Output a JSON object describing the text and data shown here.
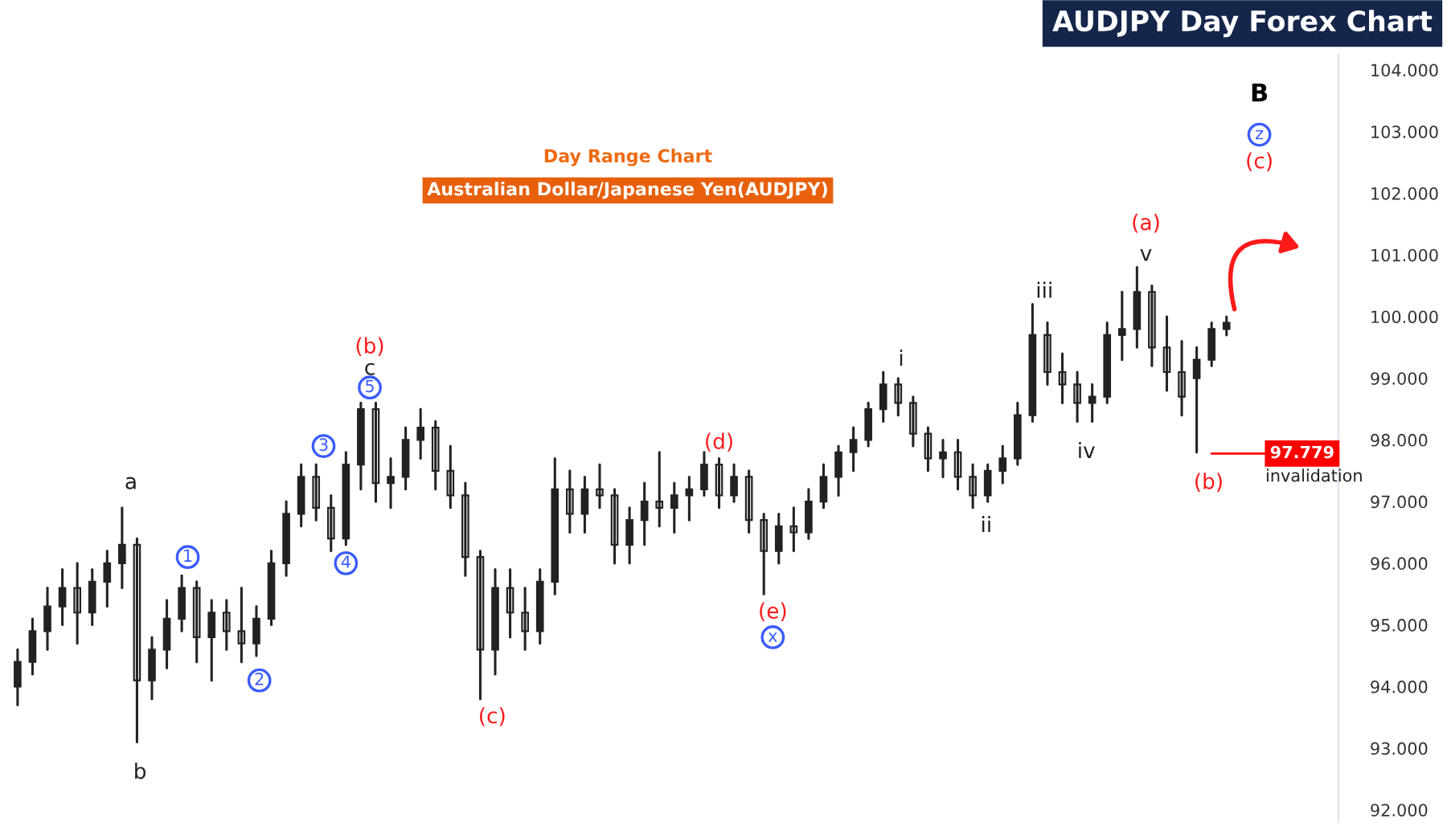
{
  "chart_data": {
    "type": "candlestick",
    "title": "AUDJPY Day Forex Chart",
    "categories": [
      null,
      null,
      null,
      null,
      null,
      null,
      null,
      null,
      null,
      null,
      null,
      null,
      null,
      null,
      null,
      null,
      null,
      null,
      null,
      null,
      null,
      null,
      null,
      null,
      null,
      null,
      null,
      null,
      null,
      null,
      null,
      null,
      null,
      null,
      null,
      null,
      null,
      null,
      null,
      null,
      null,
      null,
      null,
      null,
      null,
      null,
      null,
      null,
      null,
      null,
      null,
      null,
      null,
      null,
      null,
      null,
      null,
      null,
      null,
      null,
      null,
      null,
      null,
      null,
      null,
      null,
      null,
      null,
      null,
      null,
      null,
      null,
      null,
      null,
      null,
      null,
      null,
      null,
      null,
      null,
      null,
      null,
      null,
      null,
      null,
      null,
      null,
      null,
      null
    ],
    "ohlc": [
      [
        94.0,
        94.6,
        93.7,
        94.4
      ],
      [
        94.4,
        95.1,
        94.2,
        94.9
      ],
      [
        94.9,
        95.6,
        94.6,
        95.3
      ],
      [
        95.3,
        95.9,
        95.0,
        95.6
      ],
      [
        95.6,
        96.0,
        94.7,
        95.2
      ],
      [
        95.2,
        95.9,
        95.0,
        95.7
      ],
      [
        95.7,
        96.2,
        95.3,
        96.0
      ],
      [
        96.0,
        96.9,
        95.6,
        96.3
      ],
      [
        96.3,
        96.4,
        93.1,
        94.1
      ],
      [
        94.1,
        94.8,
        93.8,
        94.6
      ],
      [
        94.6,
        95.4,
        94.3,
        95.1
      ],
      [
        95.1,
        95.8,
        94.9,
        95.6
      ],
      [
        95.6,
        95.7,
        94.4,
        94.8
      ],
      [
        94.8,
        95.4,
        94.1,
        95.2
      ],
      [
        95.2,
        95.4,
        94.6,
        94.9
      ],
      [
        94.9,
        95.6,
        94.4,
        94.7
      ],
      [
        94.7,
        95.3,
        94.5,
        95.1
      ],
      [
        95.1,
        96.2,
        95.0,
        96.0
      ],
      [
        96.0,
        97.0,
        95.8,
        96.8
      ],
      [
        96.8,
        97.6,
        96.6,
        97.4
      ],
      [
        97.4,
        97.6,
        96.7,
        96.9
      ],
      [
        96.9,
        97.1,
        96.2,
        96.4
      ],
      [
        96.4,
        97.8,
        96.3,
        97.6
      ],
      [
        97.6,
        98.6,
        97.2,
        98.5
      ],
      [
        98.5,
        98.6,
        97.0,
        97.3
      ],
      [
        97.3,
        97.7,
        96.9,
        97.4
      ],
      [
        97.4,
        98.2,
        97.2,
        98.0
      ],
      [
        98.0,
        98.5,
        97.7,
        98.2
      ],
      [
        98.2,
        98.3,
        97.2,
        97.5
      ],
      [
        97.5,
        97.9,
        96.9,
        97.1
      ],
      [
        97.1,
        97.3,
        95.8,
        96.1
      ],
      [
        96.1,
        96.2,
        93.8,
        94.6
      ],
      [
        94.6,
        95.9,
        94.2,
        95.6
      ],
      [
        95.6,
        95.9,
        94.8,
        95.2
      ],
      [
        95.2,
        95.6,
        94.6,
        94.9
      ],
      [
        94.9,
        95.9,
        94.7,
        95.7
      ],
      [
        95.7,
        97.7,
        95.5,
        97.2
      ],
      [
        97.2,
        97.5,
        96.5,
        96.8
      ],
      [
        96.8,
        97.4,
        96.5,
        97.2
      ],
      [
        97.2,
        97.6,
        96.9,
        97.1
      ],
      [
        97.1,
        97.2,
        96.0,
        96.3
      ],
      [
        96.3,
        96.9,
        96.0,
        96.7
      ],
      [
        96.7,
        97.3,
        96.3,
        97.0
      ],
      [
        97.0,
        97.8,
        96.6,
        96.9
      ],
      [
        96.9,
        97.3,
        96.5,
        97.1
      ],
      [
        97.1,
        97.4,
        96.7,
        97.2
      ],
      [
        97.2,
        97.8,
        97.1,
        97.6
      ],
      [
        97.6,
        97.7,
        96.9,
        97.1
      ],
      [
        97.1,
        97.6,
        97.0,
        97.4
      ],
      [
        97.4,
        97.5,
        96.5,
        96.7
      ],
      [
        96.7,
        96.8,
        95.5,
        96.2
      ],
      [
        96.2,
        96.8,
        96.0,
        96.6
      ],
      [
        96.6,
        96.9,
        96.2,
        96.5
      ],
      [
        96.5,
        97.2,
        96.4,
        97.0
      ],
      [
        97.0,
        97.6,
        96.9,
        97.4
      ],
      [
        97.4,
        97.9,
        97.1,
        97.8
      ],
      [
        97.8,
        98.2,
        97.5,
        98.0
      ],
      [
        98.0,
        98.6,
        97.9,
        98.5
      ],
      [
        98.5,
        99.1,
        98.3,
        98.9
      ],
      [
        98.9,
        99.0,
        98.4,
        98.6
      ],
      [
        98.6,
        98.7,
        97.9,
        98.1
      ],
      [
        98.1,
        98.2,
        97.5,
        97.7
      ],
      [
        97.7,
        98.0,
        97.4,
        97.8
      ],
      [
        97.8,
        98.0,
        97.2,
        97.4
      ],
      [
        97.4,
        97.6,
        96.9,
        97.1
      ],
      [
        97.1,
        97.6,
        97.0,
        97.5
      ],
      [
        97.5,
        97.9,
        97.3,
        97.7
      ],
      [
        97.7,
        98.6,
        97.6,
        98.4
      ],
      [
        98.4,
        100.2,
        98.3,
        99.7
      ],
      [
        99.7,
        99.9,
        98.9,
        99.1
      ],
      [
        99.1,
        99.4,
        98.6,
        98.9
      ],
      [
        98.9,
        99.1,
        98.3,
        98.6
      ],
      [
        98.6,
        98.9,
        98.3,
        98.7
      ],
      [
        98.7,
        99.9,
        98.6,
        99.7
      ],
      [
        99.7,
        100.4,
        99.3,
        99.8
      ],
      [
        99.8,
        100.8,
        99.5,
        100.4
      ],
      [
        100.4,
        100.5,
        99.2,
        99.5
      ],
      [
        99.5,
        100.0,
        98.8,
        99.1
      ],
      [
        99.1,
        99.6,
        98.4,
        98.7
      ],
      [
        99.0,
        99.5,
        97.8,
        99.3
      ],
      [
        99.3,
        99.9,
        99.2,
        99.8
      ],
      [
        99.8,
        100.0,
        99.7,
        99.9
      ],
      null,
      null,
      null,
      null,
      null,
      null,
      null
    ],
    "ylim": [
      91.8,
      104.25
    ],
    "yticks": [
      {
        "value": 92,
        "label": "92.000"
      },
      {
        "value": 93,
        "label": "93.000"
      },
      {
        "value": 94,
        "label": "94.000"
      },
      {
        "value": 95,
        "label": "95.000"
      },
      {
        "value": 96,
        "label": "96.000"
      },
      {
        "value": 97,
        "label": "97.000"
      },
      {
        "value": 98,
        "label": "98.000"
      },
      {
        "value": 99,
        "label": "99.000"
      },
      {
        "value": 100,
        "label": "100.000"
      },
      {
        "value": 101,
        "label": "101.000"
      },
      {
        "value": 102,
        "label": "102.000"
      },
      {
        "value": 103,
        "label": "103.000"
      },
      {
        "value": 104,
        "label": "104.000"
      }
    ],
    "ref_lines": [
      {
        "axis": "y",
        "value": 97.779,
        "label": "97.779",
        "color": "#ff0000"
      }
    ],
    "grid": false,
    "tick_labels": "y",
    "annotations": [
      "Day Range Chart",
      "Australian Dollar/Japanese Yen(AUDJPY)",
      "a",
      "b",
      "1",
      "2",
      "3",
      "4",
      "5",
      "c",
      "(b)",
      "(c)",
      "(d)",
      "(e)",
      "x",
      "i",
      "ii",
      "iii",
      "iv",
      "v",
      "(a)",
      "(b)",
      "(c)",
      "z",
      "B",
      "invalidation"
    ]
  }
}
